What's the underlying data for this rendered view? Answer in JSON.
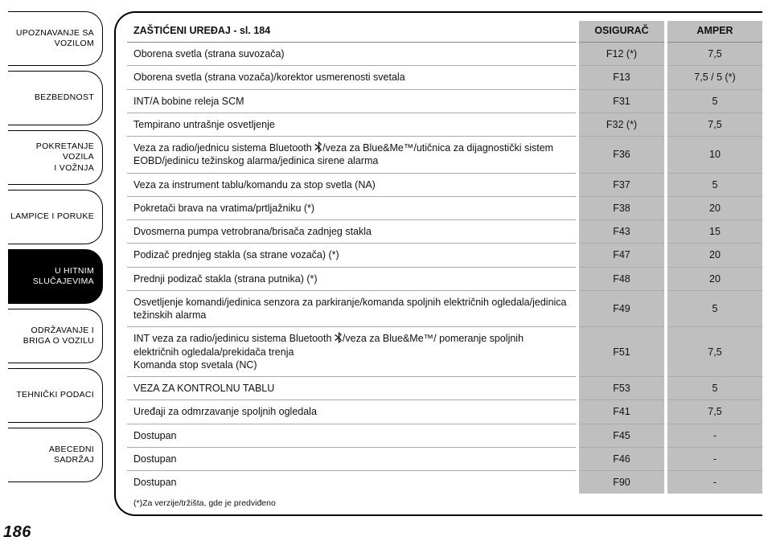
{
  "page_number": "186",
  "sidebar": {
    "tabs": [
      {
        "label": "UPOZNAVANJE SA\nVOZILOM",
        "active": false
      },
      {
        "label": "BEZBEDNOST",
        "active": false
      },
      {
        "label": "POKRETANJE VOZILA\nI VOŽNJA",
        "active": false
      },
      {
        "label": "LAMPICE I PORUKE",
        "active": false
      },
      {
        "label": "U HITNIM\nSLUČAJEVIMA",
        "active": true
      },
      {
        "label": "ODRŽAVANJE I\nBRIGA O VOZILU",
        "active": false
      },
      {
        "label": "TEHNIČKI PODACI",
        "active": false
      },
      {
        "label": "ABECEDNI SADRŽAJ",
        "active": false
      }
    ]
  },
  "table": {
    "title": "ZAŠTIĆENI UREĐAJ - sl. 184",
    "col_fuse": "OSIGURAČ",
    "col_amp": "AMPER",
    "rows": [
      {
        "device": "Oborena svetla (strana suvozača)",
        "fuse": "F12 (*)",
        "amp": "7,5"
      },
      {
        "device": "Oborena svetla (strana vozača)/korektor usmerenosti svetala",
        "fuse": "F13",
        "amp": "7,5 / 5 (*)"
      },
      {
        "device": "INT/A bobine releja SCM",
        "fuse": "F31",
        "amp": "5"
      },
      {
        "device": "Tempirano untrašnje osvetljenje",
        "fuse": "F32 (*)",
        "amp": "7,5"
      },
      {
        "device": "Veza za radio/jednicu sistema Bluetooth {BT}/veza za Blue&Me™/utičnica za dijagnostički sistem EOBD/jedinicu težinskog alarma/jedinica sirene alarma",
        "fuse": "F36",
        "amp": "10"
      },
      {
        "device": "Veza za instrument tablu/komandu za stop svetla (NA)",
        "fuse": "F37",
        "amp": "5"
      },
      {
        "device": "Pokretači brava na vratima/prtljažniku (*)",
        "fuse": "F38",
        "amp": "20"
      },
      {
        "device": "Dvosmerna pumpa vetrobrana/brisača zadnjeg stakla",
        "fuse": "F43",
        "amp": "15"
      },
      {
        "device": "Podizač prednjeg stakla (sa strane vozača) (*)",
        "fuse": "F47",
        "amp": "20"
      },
      {
        "device": "Prednji podizač stakla (strana putnika) (*)",
        "fuse": "F48",
        "amp": "20"
      },
      {
        "device": "Osvetljenje komandi/jedinica senzora za parkiranje/komanda spoljnih električnih ogledala/jedinica težinskih alarma",
        "fuse": "F49",
        "amp": "5"
      },
      {
        "device": "INT veza za radio/jedinicu sistema Bluetooth {BT}/veza za Blue&Me™/ pomeranje spoljnih električnih ogledala/prekidača trenja\nKomanda stop svetala (NC)",
        "fuse": "F51",
        "amp": "7,5"
      },
      {
        "device": "VEZA ZA KONTROLNU TABLU",
        "fuse": "F53",
        "amp": "5"
      },
      {
        "device": "Uređaji za odmrzavanje spoljnih ogledala",
        "fuse": "F41",
        "amp": "7,5"
      },
      {
        "device": "Dostupan",
        "fuse": "F45",
        "amp": "-"
      },
      {
        "device": "Dostupan",
        "fuse": "F46",
        "amp": "-"
      },
      {
        "device": "Dostupan",
        "fuse": "F90",
        "amp": "-"
      }
    ],
    "footnote": "(*)Za verzije/tržišta, gde je predviđeno"
  },
  "colors": {
    "page_bg": "#ffffff",
    "text": "#111111",
    "cell_bg": "#bfbfbf",
    "border": "#000000",
    "rule": "#aaaaaa"
  }
}
